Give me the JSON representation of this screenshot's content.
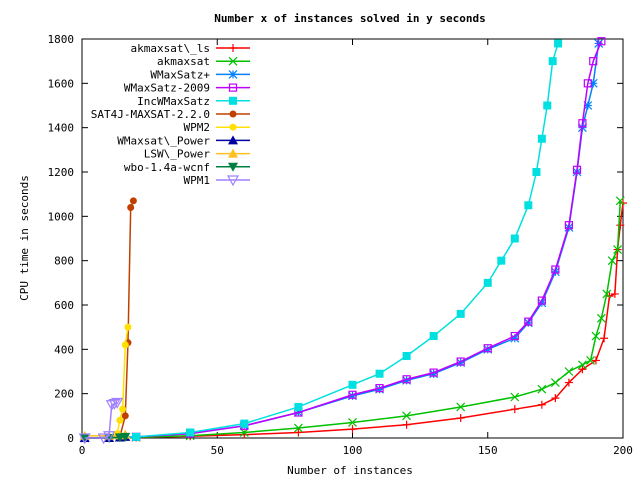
{
  "chart_data": {
    "type": "line",
    "title": "Number x of instances solved in y seconds",
    "xlabel": "Number of instances",
    "ylabel": "CPU time in seconds",
    "xlim": [
      0,
      200
    ],
    "ylim": [
      0,
      1800
    ],
    "xticks": [
      0,
      50,
      100,
      150,
      200
    ],
    "yticks": [
      0,
      200,
      400,
      600,
      800,
      1000,
      1200,
      1400,
      1600,
      1800
    ],
    "grid": false,
    "legend_position": "top-left",
    "series": [
      {
        "name": "akmaxsat\\_ls",
        "color": "#ff0000",
        "marker": "plus",
        "x": [
          1,
          20,
          40,
          60,
          80,
          100,
          120,
          140,
          160,
          170,
          175,
          180,
          185,
          190,
          193,
          195,
          197,
          198,
          199,
          200
        ],
        "y": [
          0,
          2,
          8,
          15,
          25,
          40,
          60,
          90,
          130,
          150,
          180,
          250,
          310,
          350,
          450,
          640,
          650,
          850,
          960,
          1060
        ]
      },
      {
        "name": "akmaxsat",
        "color": "#00c000",
        "marker": "cross",
        "x": [
          1,
          20,
          40,
          60,
          80,
          100,
          120,
          140,
          160,
          170,
          175,
          180,
          185,
          188,
          190,
          192,
          194,
          196,
          198,
          199
        ],
        "y": [
          0,
          3,
          10,
          25,
          45,
          70,
          100,
          140,
          185,
          220,
          250,
          300,
          330,
          350,
          460,
          540,
          650,
          800,
          850,
          1070
        ]
      },
      {
        "name": "WMaxSatz+",
        "color": "#0080ff",
        "marker": "star",
        "x": [
          1,
          20,
          40,
          60,
          80,
          100,
          110,
          120,
          130,
          140,
          150,
          160,
          165,
          170,
          175,
          180,
          183,
          185,
          187,
          189,
          191
        ],
        "y": [
          0,
          5,
          20,
          55,
          115,
          190,
          220,
          260,
          290,
          340,
          400,
          450,
          520,
          610,
          750,
          950,
          1200,
          1400,
          1500,
          1600,
          1780
        ]
      },
      {
        "name": "WMaxSatz-2009",
        "color": "#c000ff",
        "marker": "square",
        "x": [
          1,
          20,
          40,
          60,
          80,
          100,
          110,
          120,
          130,
          140,
          150,
          160,
          165,
          170,
          175,
          180,
          183,
          185,
          187,
          189,
          192
        ],
        "y": [
          0,
          5,
          20,
          55,
          115,
          195,
          225,
          265,
          295,
          345,
          405,
          460,
          525,
          620,
          760,
          960,
          1210,
          1420,
          1600,
          1700,
          1790
        ]
      },
      {
        "name": "IncWMaxSatz",
        "color": "#00e0e0",
        "marker": "filled-square",
        "x": [
          1,
          20,
          40,
          60,
          80,
          100,
          110,
          120,
          130,
          140,
          150,
          155,
          160,
          165,
          168,
          170,
          172,
          174,
          176
        ],
        "y": [
          0,
          5,
          25,
          65,
          140,
          240,
          290,
          370,
          460,
          560,
          700,
          800,
          900,
          1050,
          1200,
          1350,
          1500,
          1700,
          1780
        ]
      },
      {
        "name": "SAT4J-MAXSAT-2.2.0",
        "color": "#c04000",
        "marker": "filled-circle",
        "x": [
          1,
          10,
          14,
          16,
          17,
          18,
          19
        ],
        "y": [
          0,
          0,
          5,
          100,
          430,
          1040,
          1070
        ]
      },
      {
        "name": "WPM2",
        "color": "#ffe000",
        "marker": "filled-circle",
        "x": [
          1,
          10,
          13,
          14,
          15,
          16,
          17
        ],
        "y": [
          0,
          0,
          20,
          80,
          130,
          420,
          500
        ]
      },
      {
        "name": "WMaxsat\\_Power",
        "color": "#0000a0",
        "marker": "filled-triangle",
        "x": [
          1,
          10,
          14,
          16
        ],
        "y": [
          0,
          0,
          2,
          5
        ]
      },
      {
        "name": "LSW\\_Power",
        "color": "#ffc020",
        "marker": "filled-triangle",
        "x": [
          1,
          10,
          14,
          16
        ],
        "y": [
          10,
          10,
          12,
          15
        ]
      },
      {
        "name": "wbo-1.4a-wcnf",
        "color": "#008040",
        "marker": "filled-down-triangle",
        "x": [
          1,
          10,
          14,
          16
        ],
        "y": [
          0,
          0,
          3,
          5
        ]
      },
      {
        "name": "WPM1",
        "color": "#a080ff",
        "marker": "down-triangle",
        "x": [
          1,
          8,
          10,
          11,
          12,
          13
        ],
        "y": [
          0,
          0,
          10,
          150,
          155,
          160
        ]
      }
    ]
  }
}
